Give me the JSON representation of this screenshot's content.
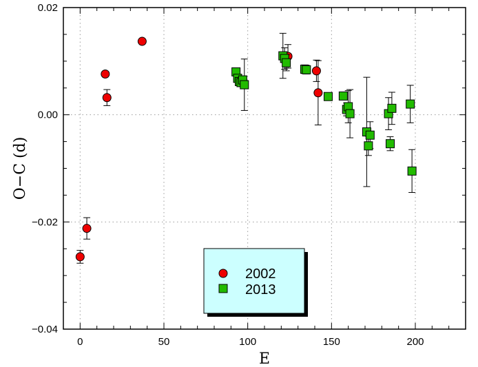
{
  "chart_data": {
    "type": "scatter",
    "xlabel": "E",
    "ylabel": "O−C (d)",
    "xlim": [
      -10,
      230
    ],
    "ylim": [
      -0.04,
      0.02
    ],
    "xticks": [
      0,
      50,
      100,
      150,
      200
    ],
    "xtick_labels": [
      "0",
      "50",
      "100",
      "150",
      "200"
    ],
    "yticks": [
      -0.04,
      -0.02,
      0.0,
      0.02
    ],
    "ytick_labels": [
      "−0.04",
      "−0.02",
      "0.00",
      "0.02"
    ],
    "grid": true,
    "legend_position": "bottom-center",
    "series": [
      {
        "name": "2002",
        "marker": "circle",
        "color": "#ee0000",
        "points": [
          {
            "x": 0,
            "y": -0.0265,
            "err": 0.0012
          },
          {
            "x": 4,
            "y": -0.0212,
            "err": 0.002
          },
          {
            "x": 15,
            "y": 0.0076,
            "err": 0
          },
          {
            "x": 16,
            "y": 0.0032,
            "err": 0.0015
          },
          {
            "x": 37,
            "y": 0.0137,
            "err": 0
          },
          {
            "x": 124,
            "y": 0.0109,
            "err": 0.0022
          },
          {
            "x": 141,
            "y": 0.0082,
            "err": 0.002
          },
          {
            "x": 142,
            "y": 0.0041,
            "err": 0.006
          }
        ]
      },
      {
        "name": "2013",
        "marker": "square",
        "color": "#22bb00",
        "points": [
          {
            "x": 93,
            "y": 0.008,
            "err": 0
          },
          {
            "x": 94,
            "y": 0.0068,
            "err": 0
          },
          {
            "x": 95,
            "y": 0.0062,
            "err": 0
          },
          {
            "x": 96,
            "y": 0.006,
            "err": 0
          },
          {
            "x": 97,
            "y": 0.0065,
            "err": 0
          },
          {
            "x": 98,
            "y": 0.0056,
            "err": 0.0048
          },
          {
            "x": 121,
            "y": 0.011,
            "err": 0.0042
          },
          {
            "x": 122,
            "y": 0.0105,
            "err": 0.002
          },
          {
            "x": 123,
            "y": 0.0097,
            "err": 0.0015
          },
          {
            "x": 134,
            "y": 0.0085,
            "err": 0.0008
          },
          {
            "x": 135,
            "y": 0.0084,
            "err": 0.0008
          },
          {
            "x": 148,
            "y": 0.0034,
            "err": 0.0007
          },
          {
            "x": 157,
            "y": 0.0035,
            "err": 0
          },
          {
            "x": 159,
            "y": 0.001,
            "err": 0.0012
          },
          {
            "x": 160,
            "y": 0.0015,
            "err": 0.003
          },
          {
            "x": 161,
            "y": 0.0002,
            "err": 0.0045
          },
          {
            "x": 171,
            "y": -0.0032,
            "err": 0.0102
          },
          {
            "x": 172,
            "y": -0.0058,
            "err": 0.0018
          },
          {
            "x": 173,
            "y": -0.0038,
            "err": 0.0025
          },
          {
            "x": 184,
            "y": 0.0002,
            "err": 0.003
          },
          {
            "x": 185,
            "y": -0.0054,
            "err": 0.0013
          },
          {
            "x": 186,
            "y": 0.0012,
            "err": 0.003
          },
          {
            "x": 197,
            "y": 0.002,
            "err": 0.0035
          },
          {
            "x": 198,
            "y": -0.0105,
            "err": 0.004
          }
        ]
      }
    ]
  }
}
